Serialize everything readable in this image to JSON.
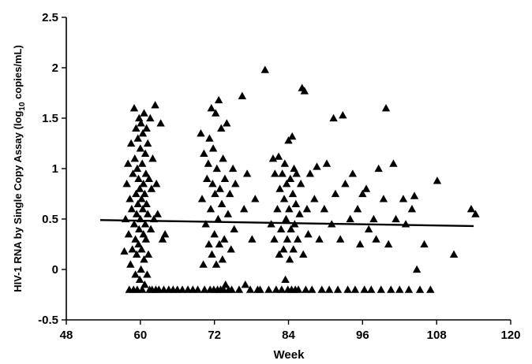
{
  "chart_data": {
    "type": "scatter",
    "title": "",
    "xlabel": "Week",
    "ylabel": {
      "prefix": "HIV-1 RNA by Single Copy Assay (log",
      "subscript": "10",
      "suffix": " copies/mL)"
    },
    "xlim": [
      48,
      120
    ],
    "ylim": [
      -0.5,
      2.5
    ],
    "xticks": [
      "48",
      "60",
      "72",
      "84",
      "96",
      "108",
      "120"
    ],
    "yticks": [
      "-0.5",
      "0",
      "0.5",
      "1",
      "1.5",
      "2",
      "2.5"
    ],
    "grid": false,
    "marker": "triangle",
    "trendline": {
      "x": [
        53.5,
        114
      ],
      "y": [
        0.49,
        0.43
      ]
    },
    "points": [
      [
        57.4,
        0.18
      ],
      [
        57.6,
        0.5
      ],
      [
        57.8,
        0.85
      ],
      [
        58.0,
        1.05
      ],
      [
        58.1,
        0.35
      ],
      [
        58.2,
        -0.2
      ],
      [
        58.3,
        0.7
      ],
      [
        58.4,
        0.05
      ],
      [
        58.5,
        1.25
      ],
      [
        58.6,
        0.6
      ],
      [
        58.7,
        0.2
      ],
      [
        58.8,
        0.95
      ],
      [
        58.9,
        -0.2
      ],
      [
        59.0,
        1.6
      ],
      [
        59.0,
        0.45
      ],
      [
        59.1,
        1.1
      ],
      [
        59.2,
        0.3
      ],
      [
        59.2,
        -0.05
      ],
      [
        59.3,
        0.75
      ],
      [
        59.3,
        1.4
      ],
      [
        59.4,
        0.55
      ],
      [
        59.4,
        0.15
      ],
      [
        59.5,
        1.0
      ],
      [
        59.5,
        -0.2
      ],
      [
        59.6,
        0.65
      ],
      [
        59.6,
        1.3
      ],
      [
        59.7,
        0.25
      ],
      [
        59.7,
        0.9
      ],
      [
        59.8,
        1.5
      ],
      [
        59.8,
        0.4
      ],
      [
        59.9,
        -0.1
      ],
      [
        59.9,
        0.8
      ],
      [
        60.0,
        1.2
      ],
      [
        60.0,
        0.5
      ],
      [
        60.1,
        0.0
      ],
      [
        60.1,
        1.45
      ],
      [
        60.2,
        0.7
      ],
      [
        60.2,
        0.2
      ],
      [
        60.3,
        1.05
      ],
      [
        60.3,
        -0.2
      ],
      [
        60.4,
        0.6
      ],
      [
        60.4,
        1.35
      ],
      [
        60.5,
        0.35
      ],
      [
        60.5,
        0.85
      ],
      [
        60.6,
        1.55
      ],
      [
        60.6,
        0.1
      ],
      [
        60.7,
        0.75
      ],
      [
        60.7,
        -0.15
      ],
      [
        60.8,
        1.15
      ],
      [
        60.8,
        0.45
      ],
      [
        60.9,
        0.95
      ],
      [
        60.9,
        0.3
      ],
      [
        61.0,
        1.4
      ],
      [
        61.0,
        0.65
      ],
      [
        61.1,
        -0.05
      ],
      [
        61.2,
        0.55
      ],
      [
        61.2,
        1.25
      ],
      [
        61.3,
        0.15
      ],
      [
        61.4,
        0.9
      ],
      [
        61.5,
        -0.2
      ],
      [
        61.6,
        1.5
      ],
      [
        61.7,
        0.4
      ],
      [
        61.8,
        0.8
      ],
      [
        61.9,
        -0.2
      ],
      [
        62.0,
        1.1
      ],
      [
        62.2,
        0.5
      ],
      [
        62.4,
        1.63
      ],
      [
        62.5,
        -0.2
      ],
      [
        62.6,
        0.85
      ],
      [
        62.8,
        0.55
      ],
      [
        63.0,
        -0.2
      ],
      [
        63.3,
        1.45
      ],
      [
        63.6,
        0.3
      ],
      [
        63.8,
        -0.2
      ],
      [
        64.0,
        0.35
      ],
      [
        64.6,
        -0.2
      ],
      [
        65.3,
        -0.2
      ],
      [
        66.0,
        -0.2
      ],
      [
        66.8,
        -0.2
      ],
      [
        67.7,
        -0.2
      ],
      [
        68.5,
        -0.2
      ],
      [
        69.3,
        -0.2
      ],
      [
        69.8,
        1.35
      ],
      [
        70.0,
        0.7
      ],
      [
        70.2,
        0.05
      ],
      [
        70.3,
        1.15
      ],
      [
        70.4,
        -0.2
      ],
      [
        70.6,
        0.45
      ],
      [
        70.8,
        0.9
      ],
      [
        71.0,
        1.05
      ],
      [
        71.1,
        0.25
      ],
      [
        71.2,
        1.3
      ],
      [
        71.3,
        -0.2
      ],
      [
        71.4,
        0.6
      ],
      [
        71.5,
        1.6
      ],
      [
        71.6,
        0.15
      ],
      [
        71.7,
        0.85
      ],
      [
        71.8,
        1.2
      ],
      [
        71.9,
        -0.2
      ],
      [
        72.0,
        0.35
      ],
      [
        72.1,
        0.75
      ],
      [
        72.2,
        1.55
      ],
      [
        72.3,
        0.05
      ],
      [
        72.4,
        1.0
      ],
      [
        72.5,
        -0.2
      ],
      [
        72.6,
        0.5
      ],
      [
        72.7,
        1.68
      ],
      [
        72.8,
        0.25
      ],
      [
        72.9,
        0.8
      ],
      [
        73.0,
        -0.2
      ],
      [
        73.1,
        1.4
      ],
      [
        73.2,
        0.65
      ],
      [
        73.3,
        0.1
      ],
      [
        73.4,
        1.1
      ],
      [
        73.5,
        -0.2
      ],
      [
        73.6,
        0.3
      ],
      [
        73.7,
        0.9
      ],
      [
        73.8,
        -0.15
      ],
      [
        74.0,
        1.45
      ],
      [
        74.2,
        0.55
      ],
      [
        74.3,
        -0.2
      ],
      [
        74.5,
        0.75
      ],
      [
        74.7,
        0.2
      ],
      [
        74.8,
        -0.2
      ],
      [
        75.0,
        1.0
      ],
      [
        75.2,
        0.4
      ],
      [
        75.4,
        0.85
      ],
      [
        76.0,
        -0.2
      ],
      [
        76.5,
        1.72
      ],
      [
        76.8,
        0.6
      ],
      [
        77.0,
        -0.15
      ],
      [
        77.3,
        0.95
      ],
      [
        77.8,
        -0.2
      ],
      [
        78.1,
        0.3
      ],
      [
        78.6,
        0.7
      ],
      [
        79.0,
        -0.2
      ],
      [
        79.4,
        -0.2
      ],
      [
        80.2,
        1.98
      ],
      [
        80.8,
        -0.2
      ],
      [
        81.2,
        0.45
      ],
      [
        81.5,
        1.1
      ],
      [
        81.7,
        0.3
      ],
      [
        81.8,
        0.95
      ],
      [
        82.0,
        -0.2
      ],
      [
        82.2,
        0.6
      ],
      [
        82.4,
        1.12
      ],
      [
        82.5,
        0.15
      ],
      [
        82.6,
        0.8
      ],
      [
        82.8,
        0.4
      ],
      [
        82.9,
        -0.2
      ],
      [
        83.0,
        0.95
      ],
      [
        83.2,
        0.2
      ],
      [
        83.3,
        0.7
      ],
      [
        83.4,
        1.05
      ],
      [
        83.5,
        -0.1
      ],
      [
        83.6,
        0.5
      ],
      [
        83.7,
        0.85
      ],
      [
        83.8,
        0.3
      ],
      [
        83.9,
        -0.2
      ],
      [
        84.0,
        1.28
      ],
      [
        84.1,
        0.6
      ],
      [
        84.2,
        0.1
      ],
      [
        84.3,
        0.9
      ],
      [
        84.4,
        0.4
      ],
      [
        84.5,
        -0.2
      ],
      [
        84.6,
        1.32
      ],
      [
        84.7,
        0.75
      ],
      [
        84.8,
        0.2
      ],
      [
        84.9,
        1.0
      ],
      [
        85.0,
        0.45
      ],
      [
        85.1,
        -0.2
      ],
      [
        85.2,
        0.65
      ],
      [
        85.3,
        0.95
      ],
      [
        85.5,
        0.3
      ],
      [
        85.6,
        -0.2
      ],
      [
        85.8,
        0.55
      ],
      [
        86.0,
        0.85
      ],
      [
        86.2,
        1.8
      ],
      [
        86.4,
        0.15
      ],
      [
        86.6,
        1.77
      ],
      [
        86.8,
        -0.2
      ],
      [
        87.0,
        0.6
      ],
      [
        87.2,
        0.35
      ],
      [
        87.5,
        0.95
      ],
      [
        87.8,
        -0.2
      ],
      [
        88.2,
        0.7
      ],
      [
        88.6,
        1.02
      ],
      [
        89.0,
        0.3
      ],
      [
        89.4,
        -0.2
      ],
      [
        89.8,
        0.6
      ],
      [
        90.2,
        1.05
      ],
      [
        90.6,
        -0.2
      ],
      [
        91.0,
        0.45
      ],
      [
        91.3,
        1.5
      ],
      [
        91.6,
        0.75
      ],
      [
        92.0,
        -0.2
      ],
      [
        92.4,
        0.3
      ],
      [
        92.8,
        1.53
      ],
      [
        93.2,
        0.85
      ],
      [
        93.6,
        -0.2
      ],
      [
        94.0,
        0.5
      ],
      [
        94.4,
        0.95
      ],
      [
        94.8,
        -0.2
      ],
      [
        95.2,
        0.6
      ],
      [
        95.6,
        0.25
      ],
      [
        96.0,
        0.75
      ],
      [
        96.3,
        -0.2
      ],
      [
        96.6,
        0.8
      ],
      [
        97.0,
        0.4
      ],
      [
        97.4,
        -0.2
      ],
      [
        97.8,
        0.5
      ],
      [
        98.2,
        0.3
      ],
      [
        98.6,
        1.0
      ],
      [
        99.0,
        -0.2
      ],
      [
        99.4,
        0.7
      ],
      [
        99.8,
        1.6
      ],
      [
        100.2,
        0.25
      ],
      [
        100.6,
        -0.2
      ],
      [
        101.0,
        1.05
      ],
      [
        101.4,
        0.5
      ],
      [
        102.0,
        -0.2
      ],
      [
        102.6,
        0.7
      ],
      [
        103.0,
        0.45
      ],
      [
        103.5,
        -0.2
      ],
      [
        104.0,
        0.6
      ],
      [
        104.4,
        0.73
      ],
      [
        104.8,
        0.0
      ],
      [
        105.3,
        -0.2
      ],
      [
        106.0,
        0.25
      ],
      [
        107.0,
        -0.2
      ],
      [
        108.1,
        0.88
      ],
      [
        110.8,
        0.15
      ],
      [
        113.6,
        0.6
      ],
      [
        114.3,
        0.55
      ]
    ]
  }
}
